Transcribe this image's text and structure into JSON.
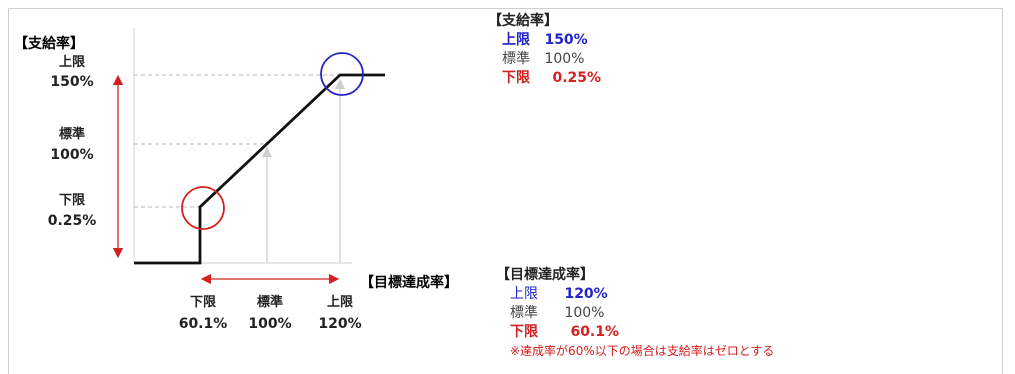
{
  "y_axis": {
    "title": "【支給率】",
    "upper": {
      "label": "上限",
      "value": "150%"
    },
    "standard": {
      "label": "標準",
      "value": "100%"
    },
    "lower": {
      "label": "下限",
      "value": "0.25%"
    }
  },
  "x_axis": {
    "title": "【目標達成率】",
    "lower": {
      "label": "下限",
      "value": "60.1%"
    },
    "standard": {
      "label": "標準",
      "value": "100%"
    },
    "upper": {
      "label": "上限",
      "value": "120%"
    }
  },
  "pay_panel": {
    "title": "【支給率】",
    "rows": [
      {
        "key": "上限",
        "value": "150%"
      },
      {
        "key": "標準",
        "value": "100%"
      },
      {
        "key": "下限",
        "value": "0.25%"
      }
    ]
  },
  "target_panel": {
    "title": "【目標達成率】",
    "rows": [
      {
        "key": "上限",
        "value": "120%"
      },
      {
        "key": "標準",
        "value": "100%"
      },
      {
        "key": "下限",
        "value": "60.1%"
      }
    ],
    "note": "※達成率が60%以下の場合は支給率はゼロとする"
  },
  "colors": {
    "upper": "#2323c8",
    "standard": "#444444",
    "lower": "#d42020",
    "line": "#111111",
    "guide": "#b8b8b8"
  }
}
